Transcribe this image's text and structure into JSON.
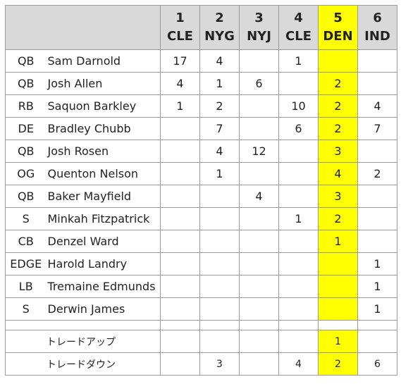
{
  "header": {
    "picks": [
      {
        "number": "1",
        "team": "CLE"
      },
      {
        "number": "2",
        "team": "NYG"
      },
      {
        "number": "3",
        "team": "NYJ"
      },
      {
        "number": "4",
        "team": "CLE"
      },
      {
        "number": "5",
        "team": "DEN"
      },
      {
        "number": "6",
        "team": "IND"
      }
    ]
  },
  "highlight_color": "#ffff00",
  "header_bg_color": "#d9d9d9",
  "players": [
    {
      "pos": "QB",
      "name": "Sam Darnold",
      "counts": [
        "17",
        "4",
        "",
        "1",
        "",
        ""
      ]
    },
    {
      "pos": "QB",
      "name": "Josh Allen",
      "counts": [
        "4",
        "1",
        "6",
        "",
        "2",
        ""
      ]
    },
    {
      "pos": "RB",
      "name": "Saquon Barkley",
      "counts": [
        "1",
        "2",
        "",
        "10",
        "2",
        "4"
      ]
    },
    {
      "pos": "DE",
      "name": "Bradley Chubb",
      "counts": [
        "",
        "7",
        "",
        "6",
        "2",
        "7"
      ]
    },
    {
      "pos": "QB",
      "name": "Josh Rosen",
      "counts": [
        "",
        "4",
        "12",
        "",
        "3",
        ""
      ]
    },
    {
      "pos": "OG",
      "name": "Quenton Nelson",
      "counts": [
        "",
        "1",
        "",
        "",
        "4",
        "2"
      ]
    },
    {
      "pos": "QB",
      "name": "Baker Mayfield",
      "counts": [
        "",
        "",
        "4",
        "",
        "3",
        ""
      ]
    },
    {
      "pos": "S",
      "name": "Minkah Fitzpatrick",
      "counts": [
        "",
        "",
        "",
        "1",
        "2",
        ""
      ]
    },
    {
      "pos": "CB",
      "name": "Denzel Ward",
      "counts": [
        "",
        "",
        "",
        "",
        "1",
        ""
      ]
    },
    {
      "pos": "EDGE",
      "name": "Harold Landry",
      "counts": [
        "",
        "",
        "",
        "",
        "",
        "1"
      ]
    },
    {
      "pos": "LB",
      "name": "Tremaine Edmunds",
      "counts": [
        "",
        "",
        "",
        "",
        "",
        "1"
      ]
    },
    {
      "pos": "S",
      "name": "Derwin James",
      "counts": [
        "",
        "",
        "",
        "",
        "",
        "1"
      ]
    }
  ],
  "trades": [
    {
      "label": "トレードアップ",
      "counts": [
        "",
        "",
        "",
        "",
        "1",
        ""
      ]
    },
    {
      "label": "トレードダウン",
      "counts": [
        "",
        "3",
        "",
        "4",
        "2",
        "6"
      ]
    }
  ]
}
